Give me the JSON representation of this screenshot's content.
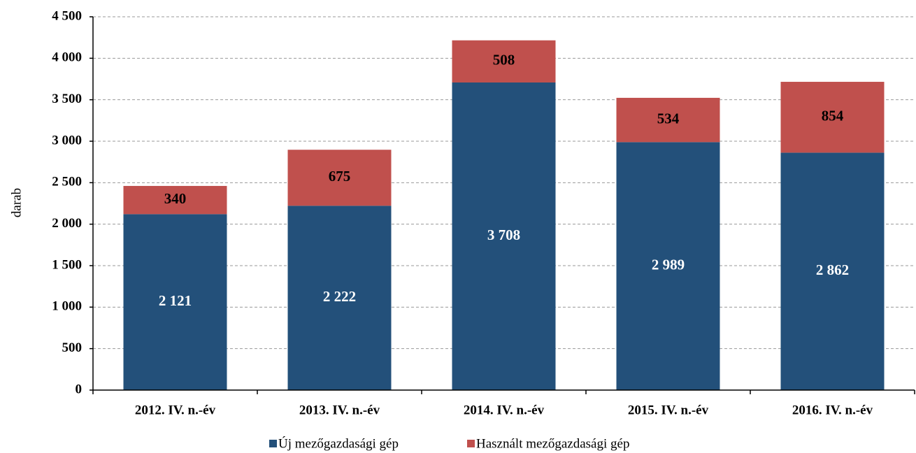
{
  "chart_data": {
    "type": "stacked_bar",
    "y_label": "darab",
    "categories": [
      "2012. IV. n.-év",
      "2013. IV. n.-év",
      "2014. IV. n.-év",
      "2015. IV. n.-év",
      "2016. IV. n.-év"
    ],
    "series": [
      {
        "name": "Új mezőgazdasági gép",
        "color": "#23507a",
        "values": [
          2121,
          2222,
          3708,
          2989,
          2862
        ],
        "value_labels": [
          "2 121",
          "2 222",
          "3 708",
          "2 989",
          "2 862"
        ]
      },
      {
        "name": "Használt mezőgazdasági gép",
        "color": "#c0504d",
        "values": [
          340,
          675,
          508,
          534,
          854
        ]
      }
    ],
    "ylim": [
      0,
      4500
    ],
    "yticks": [
      0,
      500,
      {
        "value": 1000,
        "label": "1 000"
      },
      {
        "value": 1500,
        "label": "1 500"
      },
      {
        "value": 2000,
        "label": "2 000"
      },
      {
        "value": 2500,
        "label": "2 500"
      },
      {
        "value": 3000,
        "label": "3 000"
      },
      {
        "value": 3500,
        "label": "3 500"
      },
      {
        "value": 4000,
        "label": "4 000"
      },
      {
        "value": 4500,
        "label": "4 500"
      }
    ],
    "grid": true
  }
}
